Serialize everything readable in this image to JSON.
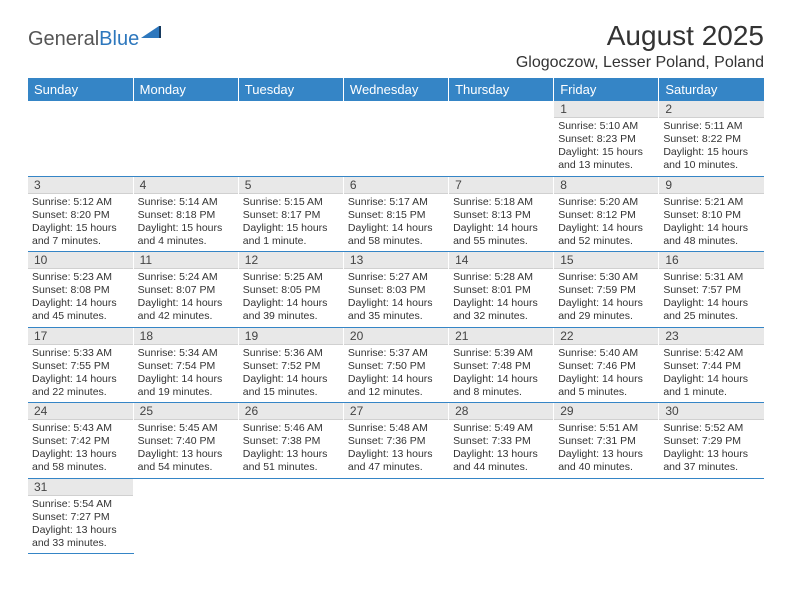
{
  "logo": {
    "general": "General",
    "blue": "Blue"
  },
  "title": "August 2025",
  "location": "Glogoczow, Lesser Poland, Poland",
  "weekday_headers": [
    "Sunday",
    "Monday",
    "Tuesday",
    "Wednesday",
    "Thursday",
    "Friday",
    "Saturday"
  ],
  "colors": {
    "header_bg": "#3585c6",
    "header_fg": "#ffffff",
    "daynum_bg": "#e8e8e8",
    "border": "#3585c6"
  },
  "weeks": [
    [
      null,
      null,
      null,
      null,
      null,
      {
        "n": "1",
        "sunrise": "Sunrise: 5:10 AM",
        "sunset": "Sunset: 8:23 PM",
        "daylight": "Daylight: 15 hours and 13 minutes."
      },
      {
        "n": "2",
        "sunrise": "Sunrise: 5:11 AM",
        "sunset": "Sunset: 8:22 PM",
        "daylight": "Daylight: 15 hours and 10 minutes."
      }
    ],
    [
      {
        "n": "3",
        "sunrise": "Sunrise: 5:12 AM",
        "sunset": "Sunset: 8:20 PM",
        "daylight": "Daylight: 15 hours and 7 minutes."
      },
      {
        "n": "4",
        "sunrise": "Sunrise: 5:14 AM",
        "sunset": "Sunset: 8:18 PM",
        "daylight": "Daylight: 15 hours and 4 minutes."
      },
      {
        "n": "5",
        "sunrise": "Sunrise: 5:15 AM",
        "sunset": "Sunset: 8:17 PM",
        "daylight": "Daylight: 15 hours and 1 minute."
      },
      {
        "n": "6",
        "sunrise": "Sunrise: 5:17 AM",
        "sunset": "Sunset: 8:15 PM",
        "daylight": "Daylight: 14 hours and 58 minutes."
      },
      {
        "n": "7",
        "sunrise": "Sunrise: 5:18 AM",
        "sunset": "Sunset: 8:13 PM",
        "daylight": "Daylight: 14 hours and 55 minutes."
      },
      {
        "n": "8",
        "sunrise": "Sunrise: 5:20 AM",
        "sunset": "Sunset: 8:12 PM",
        "daylight": "Daylight: 14 hours and 52 minutes."
      },
      {
        "n": "9",
        "sunrise": "Sunrise: 5:21 AM",
        "sunset": "Sunset: 8:10 PM",
        "daylight": "Daylight: 14 hours and 48 minutes."
      }
    ],
    [
      {
        "n": "10",
        "sunrise": "Sunrise: 5:23 AM",
        "sunset": "Sunset: 8:08 PM",
        "daylight": "Daylight: 14 hours and 45 minutes."
      },
      {
        "n": "11",
        "sunrise": "Sunrise: 5:24 AM",
        "sunset": "Sunset: 8:07 PM",
        "daylight": "Daylight: 14 hours and 42 minutes."
      },
      {
        "n": "12",
        "sunrise": "Sunrise: 5:25 AM",
        "sunset": "Sunset: 8:05 PM",
        "daylight": "Daylight: 14 hours and 39 minutes."
      },
      {
        "n": "13",
        "sunrise": "Sunrise: 5:27 AM",
        "sunset": "Sunset: 8:03 PM",
        "daylight": "Daylight: 14 hours and 35 minutes."
      },
      {
        "n": "14",
        "sunrise": "Sunrise: 5:28 AM",
        "sunset": "Sunset: 8:01 PM",
        "daylight": "Daylight: 14 hours and 32 minutes."
      },
      {
        "n": "15",
        "sunrise": "Sunrise: 5:30 AM",
        "sunset": "Sunset: 7:59 PM",
        "daylight": "Daylight: 14 hours and 29 minutes."
      },
      {
        "n": "16",
        "sunrise": "Sunrise: 5:31 AM",
        "sunset": "Sunset: 7:57 PM",
        "daylight": "Daylight: 14 hours and 25 minutes."
      }
    ],
    [
      {
        "n": "17",
        "sunrise": "Sunrise: 5:33 AM",
        "sunset": "Sunset: 7:55 PM",
        "daylight": "Daylight: 14 hours and 22 minutes."
      },
      {
        "n": "18",
        "sunrise": "Sunrise: 5:34 AM",
        "sunset": "Sunset: 7:54 PM",
        "daylight": "Daylight: 14 hours and 19 minutes."
      },
      {
        "n": "19",
        "sunrise": "Sunrise: 5:36 AM",
        "sunset": "Sunset: 7:52 PM",
        "daylight": "Daylight: 14 hours and 15 minutes."
      },
      {
        "n": "20",
        "sunrise": "Sunrise: 5:37 AM",
        "sunset": "Sunset: 7:50 PM",
        "daylight": "Daylight: 14 hours and 12 minutes."
      },
      {
        "n": "21",
        "sunrise": "Sunrise: 5:39 AM",
        "sunset": "Sunset: 7:48 PM",
        "daylight": "Daylight: 14 hours and 8 minutes."
      },
      {
        "n": "22",
        "sunrise": "Sunrise: 5:40 AM",
        "sunset": "Sunset: 7:46 PM",
        "daylight": "Daylight: 14 hours and 5 minutes."
      },
      {
        "n": "23",
        "sunrise": "Sunrise: 5:42 AM",
        "sunset": "Sunset: 7:44 PM",
        "daylight": "Daylight: 14 hours and 1 minute."
      }
    ],
    [
      {
        "n": "24",
        "sunrise": "Sunrise: 5:43 AM",
        "sunset": "Sunset: 7:42 PM",
        "daylight": "Daylight: 13 hours and 58 minutes."
      },
      {
        "n": "25",
        "sunrise": "Sunrise: 5:45 AM",
        "sunset": "Sunset: 7:40 PM",
        "daylight": "Daylight: 13 hours and 54 minutes."
      },
      {
        "n": "26",
        "sunrise": "Sunrise: 5:46 AM",
        "sunset": "Sunset: 7:38 PM",
        "daylight": "Daylight: 13 hours and 51 minutes."
      },
      {
        "n": "27",
        "sunrise": "Sunrise: 5:48 AM",
        "sunset": "Sunset: 7:36 PM",
        "daylight": "Daylight: 13 hours and 47 minutes."
      },
      {
        "n": "28",
        "sunrise": "Sunrise: 5:49 AM",
        "sunset": "Sunset: 7:33 PM",
        "daylight": "Daylight: 13 hours and 44 minutes."
      },
      {
        "n": "29",
        "sunrise": "Sunrise: 5:51 AM",
        "sunset": "Sunset: 7:31 PM",
        "daylight": "Daylight: 13 hours and 40 minutes."
      },
      {
        "n": "30",
        "sunrise": "Sunrise: 5:52 AM",
        "sunset": "Sunset: 7:29 PM",
        "daylight": "Daylight: 13 hours and 37 minutes."
      }
    ],
    [
      {
        "n": "31",
        "sunrise": "Sunrise: 5:54 AM",
        "sunset": "Sunset: 7:27 PM",
        "daylight": "Daylight: 13 hours and 33 minutes."
      },
      null,
      null,
      null,
      null,
      null,
      null
    ]
  ]
}
